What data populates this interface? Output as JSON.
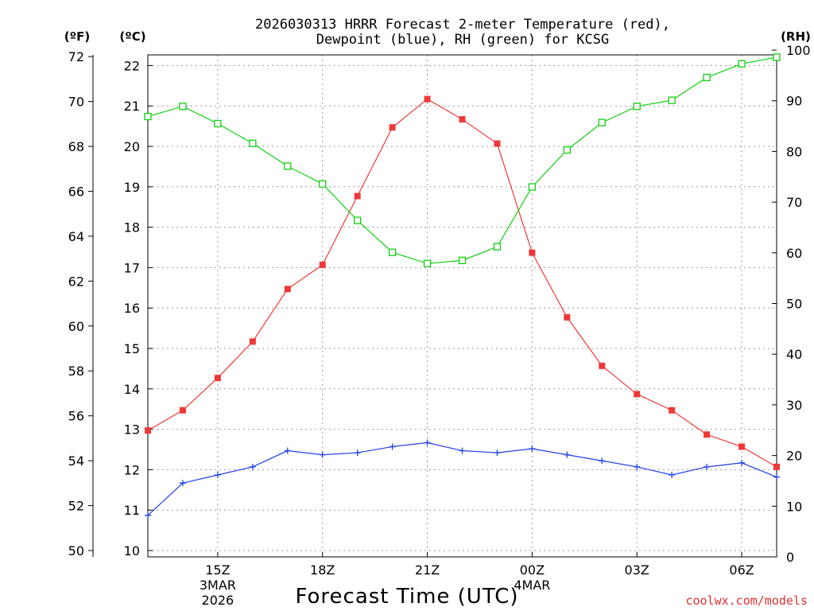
{
  "colors": {
    "temperature": "#f03838",
    "dewpoint": "#2040e8",
    "rh": "#10d010",
    "credit": "#e03030"
  },
  "chart_data": {
    "type": "line",
    "title_line1": "2026030313 HRRR Forecast 2-meter Temperature (red),",
    "title_line2": "Dewpoint (blue), RH (green) for KCSG",
    "xlabel": "Forecast Time (UTC)",
    "credit": "coolwx.com/models",
    "left_axis_f_unit": "(ºF)",
    "left_axis_c_unit": "(ºC)",
    "right_axis_unit": "(RH)",
    "x_hours": [
      13,
      14,
      15,
      16,
      17,
      18,
      19,
      20,
      21,
      22,
      23,
      24,
      25,
      26,
      27,
      28,
      29,
      30,
      31
    ],
    "x_range": [
      13,
      31
    ],
    "x_ticks": [
      {
        "hour": 15,
        "lines": [
          "15Z",
          "3MAR",
          "2026"
        ]
      },
      {
        "hour": 18,
        "lines": [
          "18Z"
        ]
      },
      {
        "hour": 21,
        "lines": [
          "21Z"
        ]
      },
      {
        "hour": 24,
        "lines": [
          "00Z",
          "4MAR"
        ]
      },
      {
        "hour": 27,
        "lines": [
          "03Z"
        ]
      },
      {
        "hour": 30,
        "lines": [
          "06Z"
        ]
      }
    ],
    "celsius_range": [
      10,
      22.2
    ],
    "celsius_ticks": [
      10,
      11,
      12,
      13,
      14,
      15,
      16,
      17,
      18,
      19,
      20,
      21,
      22
    ],
    "fahrenheit_ticks": [
      50,
      52,
      54,
      56,
      58,
      60,
      62,
      64,
      66,
      68,
      70,
      72
    ],
    "rh_range": [
      0,
      100
    ],
    "rh_ticks": [
      0,
      10,
      20,
      30,
      40,
      50,
      60,
      70,
      80,
      90,
      100
    ],
    "series": [
      {
        "name": "Temperature (°C)",
        "axis": "celsius",
        "marker": "filled-square",
        "values": [
          12.97,
          13.47,
          14.27,
          15.17,
          16.47,
          17.07,
          18.77,
          20.47,
          21.17,
          20.67,
          20.07,
          17.37,
          15.77,
          14.57,
          13.87,
          13.47,
          12.87,
          12.57,
          12.07
        ]
      },
      {
        "name": "Dewpoint (°C)",
        "axis": "celsius",
        "marker": "plus",
        "values": [
          10.87,
          11.67,
          11.87,
          12.07,
          12.47,
          12.37,
          12.42,
          12.57,
          12.67,
          12.47,
          12.42,
          12.52,
          12.37,
          12.22,
          12.07,
          11.87,
          12.07,
          12.17,
          11.82
        ]
      },
      {
        "name": "RH (%)",
        "axis": "rh",
        "marker": "open-square",
        "values": [
          86.9,
          88.9,
          85.5,
          81.6,
          77.1,
          73.6,
          66.4,
          60.1,
          57.9,
          58.5,
          61.2,
          73.0,
          80.3,
          85.7,
          88.9,
          90.1,
          94.6,
          97.3,
          98.6
        ]
      }
    ]
  }
}
